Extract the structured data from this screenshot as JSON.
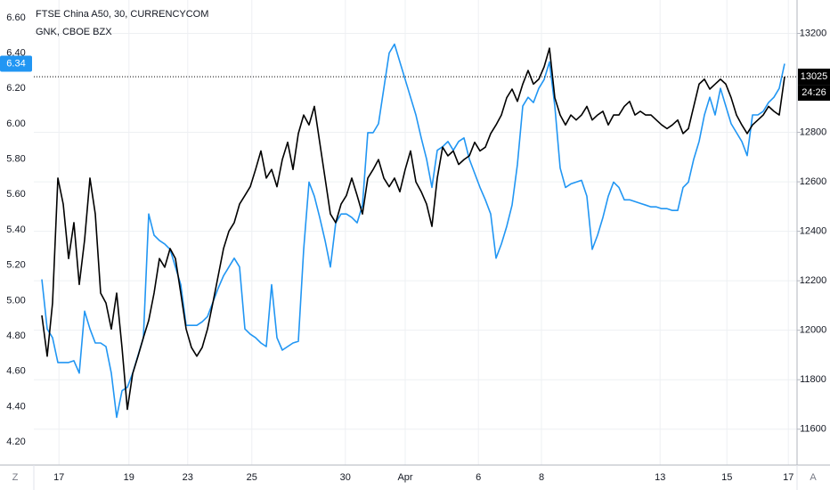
{
  "chart_data": {
    "type": "line",
    "legend": [
      "FTSE China A50, 30, CURRENCYCOM",
      "GNK, CBOE BZX"
    ],
    "countdown": "24:26",
    "corner_labels": {
      "left": "Z",
      "right": "A"
    },
    "x": [
      0,
      1,
      2,
      3,
      4,
      5,
      6,
      7,
      8,
      9,
      10,
      11,
      12,
      13,
      14,
      15,
      16,
      17,
      18,
      19,
      20,
      21,
      22,
      23,
      24,
      25,
      26,
      27,
      28,
      29,
      30,
      31,
      32,
      33,
      34,
      35,
      36,
      37,
      38,
      39,
      40,
      41,
      42,
      43,
      44,
      45,
      46,
      47,
      48,
      49,
      50,
      51,
      52,
      53,
      54,
      55,
      56,
      57,
      58,
      59,
      60,
      61,
      62,
      63,
      64,
      65,
      66,
      67,
      68,
      69,
      70,
      71,
      72,
      73,
      74,
      75,
      76,
      77,
      78,
      79,
      80,
      81,
      82,
      83,
      84,
      85,
      86,
      87,
      88,
      89,
      90,
      91,
      92,
      93,
      94,
      95,
      96,
      97,
      98,
      99,
      100,
      101,
      102,
      103,
      104,
      105,
      106,
      107,
      108,
      109,
      110,
      111,
      112,
      113,
      114,
      115,
      116,
      117,
      118,
      119,
      120,
      121,
      122,
      123,
      124,
      125,
      126,
      127,
      128,
      129,
      130,
      131,
      132,
      133,
      134,
      135,
      136,
      137,
      138,
      139
    ],
    "xlim": [
      -1.5,
      141.33
    ],
    "xticks": [
      {
        "value": 3.2,
        "label": "17"
      },
      {
        "value": 16.3,
        "label": "19"
      },
      {
        "value": 27.3,
        "label": "23"
      },
      {
        "value": 39.3,
        "label": "25"
      },
      {
        "value": 56.8,
        "label": "30"
      },
      {
        "value": 68,
        "label": "Apr"
      },
      {
        "value": 81.7,
        "label": "6"
      },
      {
        "value": 93.5,
        "label": "8"
      },
      {
        "value": 115.7,
        "label": "13"
      },
      {
        "value": 128.2,
        "label": "15"
      },
      {
        "value": 139.7,
        "label": "17"
      }
    ],
    "ylim": [
      4.07,
      6.7
    ],
    "yticks": [
      {
        "value": 4.2,
        "label": "4.20"
      },
      {
        "value": 4.4,
        "label": "4.40"
      },
      {
        "value": 4.6,
        "label": "4.60"
      },
      {
        "value": 4.8,
        "label": "4.80"
      },
      {
        "value": 5.0,
        "label": "5.00"
      },
      {
        "value": 5.2,
        "label": "5.20"
      },
      {
        "value": 5.4,
        "label": "5.40"
      },
      {
        "value": 5.6,
        "label": "5.60"
      },
      {
        "value": 5.8,
        "label": "5.80"
      },
      {
        "value": 6.0,
        "label": "6.00"
      },
      {
        "value": 6.2,
        "label": "6.20"
      },
      {
        "value": 6.4,
        "label": "6.40"
      },
      {
        "value": 6.6,
        "label": "6.60"
      }
    ],
    "y2lim": [
      11455,
      13335
    ],
    "y2ticks": [
      11600,
      11800,
      12000,
      12200,
      12400,
      12600,
      12800,
      13200
    ],
    "grid": true,
    "series": [
      {
        "name": "FTSE China A50, 30, CURRENCYCOM",
        "color": "#000000",
        "axis": "y2",
        "values": [
          12060,
          11895,
          12110,
          12615,
          12510,
          12290,
          12435,
          12185,
          12365,
          12615,
          12470,
          12150,
          12110,
          12005,
          12150,
          11930,
          11680,
          11825,
          11895,
          11970,
          12040,
          12150,
          12290,
          12255,
          12330,
          12290,
          12150,
          12005,
          11930,
          11895,
          11930,
          12005,
          12110,
          12220,
          12330,
          12400,
          12435,
          12510,
          12545,
          12580,
          12650,
          12725,
          12615,
          12650,
          12580,
          12690,
          12760,
          12650,
          12795,
          12870,
          12830,
          12905,
          12760,
          12615,
          12470,
          12435,
          12510,
          12545,
          12615,
          12545,
          12470,
          12615,
          12650,
          12690,
          12615,
          12580,
          12615,
          12560,
          12650,
          12725,
          12600,
          12560,
          12510,
          12420,
          12615,
          12740,
          12705,
          12725,
          12670,
          12690,
          12705,
          12760,
          12725,
          12740,
          12795,
          12830,
          12870,
          12940,
          12975,
          12925,
          12995,
          13050,
          12995,
          13015,
          13065,
          13140,
          12940,
          12870,
          12830,
          12870,
          12850,
          12870,
          12905,
          12850,
          12870,
          12885,
          12830,
          12870,
          12870,
          12905,
          12925,
          12870,
          12885,
          12870,
          12870,
          12850,
          12830,
          12815,
          12830,
          12850,
          12795,
          12815,
          12905,
          12995,
          13015,
          12975,
          12995,
          13015,
          12995,
          12940,
          12870,
          12830,
          12795,
          12830,
          12850,
          12870,
          12905,
          12885,
          12870,
          13025
        ]
      },
      {
        "name": "GNK, CBOE BZX",
        "color": "#2196f3",
        "axis": "y",
        "values": [
          5.12,
          4.84,
          4.79,
          4.65,
          4.65,
          4.65,
          4.66,
          4.59,
          4.94,
          4.84,
          4.76,
          4.76,
          4.74,
          4.59,
          4.34,
          4.49,
          4.51,
          4.59,
          4.69,
          4.79,
          5.49,
          5.37,
          5.34,
          5.32,
          5.29,
          5.19,
          5.09,
          4.86,
          4.86,
          4.86,
          4.88,
          4.91,
          4.99,
          5.07,
          5.14,
          5.19,
          5.24,
          5.19,
          4.84,
          4.81,
          4.79,
          4.76,
          4.74,
          5.09,
          4.79,
          4.72,
          4.74,
          4.76,
          4.77,
          5.29,
          5.67,
          5.59,
          5.47,
          5.34,
          5.19,
          5.44,
          5.49,
          5.49,
          5.47,
          5.44,
          5.54,
          5.95,
          5.95,
          6.0,
          6.2,
          6.4,
          6.45,
          6.35,
          6.25,
          6.15,
          6.05,
          5.92,
          5.8,
          5.64,
          5.85,
          5.87,
          5.9,
          5.85,
          5.9,
          5.92,
          5.8,
          5.72,
          5.64,
          5.57,
          5.49,
          5.24,
          5.32,
          5.42,
          5.54,
          5.77,
          6.1,
          6.15,
          6.12,
          6.2,
          6.25,
          6.35,
          6.1,
          5.75,
          5.64,
          5.66,
          5.67,
          5.68,
          5.59,
          5.29,
          5.37,
          5.47,
          5.59,
          5.67,
          5.64,
          5.57,
          5.57,
          5.56,
          5.55,
          5.54,
          5.53,
          5.53,
          5.52,
          5.52,
          5.51,
          5.51,
          5.64,
          5.67,
          5.8,
          5.9,
          6.05,
          6.15,
          6.05,
          6.2,
          6.1,
          6.0,
          5.95,
          5.9,
          5.82,
          6.05,
          6.05,
          6.07,
          6.12,
          6.15,
          6.2,
          6.34
        ]
      }
    ]
  }
}
